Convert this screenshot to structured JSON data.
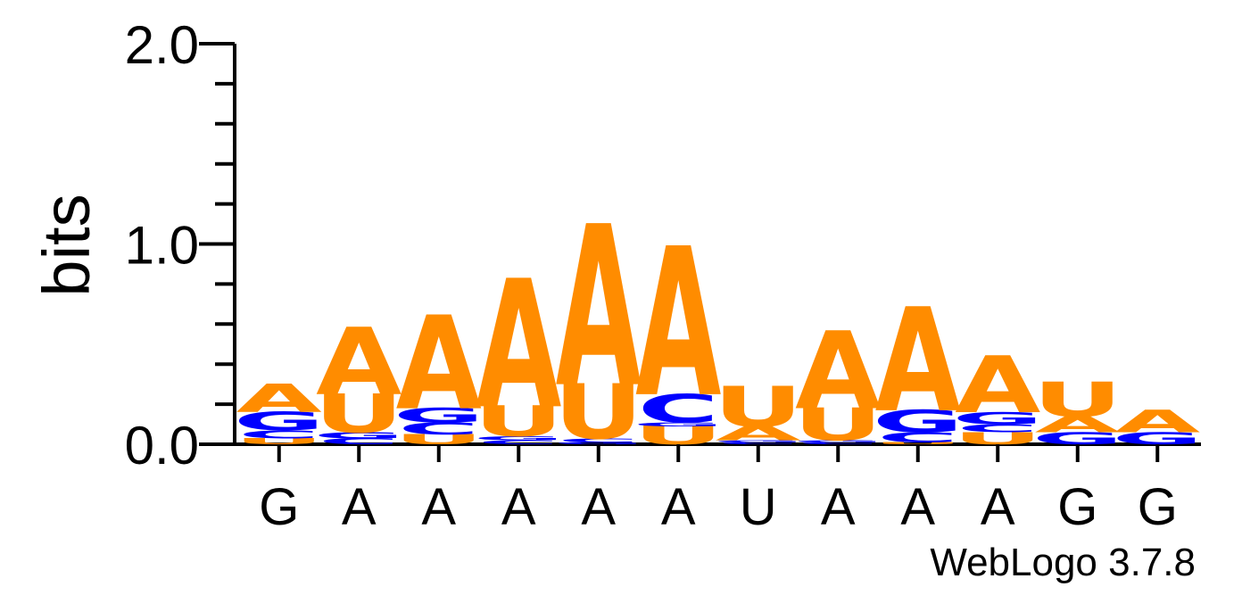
{
  "chart_data": {
    "type": "sequence_logo",
    "ylabel": "bits",
    "ylim": [
      0,
      2.0
    ],
    "yticks": [
      "0.0",
      "1.0",
      "2.0"
    ],
    "colors": {
      "A": "#ff8c00",
      "U": "#ff8c00",
      "C": "#0000ff",
      "G": "#0000ff"
    },
    "positions": [
      {
        "label": "G",
        "stack": [
          {
            "letter": "U",
            "bits": 0.03
          },
          {
            "letter": "C",
            "bits": 0.04
          },
          {
            "letter": "G",
            "bits": 0.09
          },
          {
            "letter": "A",
            "bits": 0.14
          }
        ]
      },
      {
        "label": "A",
        "stack": [
          {
            "letter": "C",
            "bits": 0.03
          },
          {
            "letter": "G",
            "bits": 0.03
          },
          {
            "letter": "U",
            "bits": 0.19
          },
          {
            "letter": "A",
            "bits": 0.33
          }
        ]
      },
      {
        "label": "A",
        "stack": [
          {
            "letter": "U",
            "bits": 0.05
          },
          {
            "letter": "C",
            "bits": 0.06
          },
          {
            "letter": "G",
            "bits": 0.07
          },
          {
            "letter": "A",
            "bits": 0.46
          }
        ]
      },
      {
        "label": "A",
        "stack": [
          {
            "letter": "C",
            "bits": 0.02
          },
          {
            "letter": "G",
            "bits": 0.02
          },
          {
            "letter": "U",
            "bits": 0.15
          },
          {
            "letter": "A",
            "bits": 0.63
          }
        ]
      },
      {
        "label": "A",
        "stack": [
          {
            "letter": "G",
            "bits": 0.01
          },
          {
            "letter": "C",
            "bits": 0.02
          },
          {
            "letter": "U",
            "bits": 0.27
          },
          {
            "letter": "A",
            "bits": 0.79
          }
        ]
      },
      {
        "label": "A",
        "stack": [
          {
            "letter": "U",
            "bits": 0.09
          },
          {
            "letter": "G",
            "bits": 0.02
          },
          {
            "letter": "C",
            "bits": 0.14
          },
          {
            "letter": "A",
            "bits": 0.73
          }
        ]
      },
      {
        "label": "U",
        "stack": [
          {
            "letter": "C",
            "bits": 0.01
          },
          {
            "letter": "G",
            "bits": 0.01
          },
          {
            "letter": "A",
            "bits": 0.07
          },
          {
            "letter": "U",
            "bits": 0.2
          }
        ]
      },
      {
        "label": "A",
        "stack": [
          {
            "letter": "C",
            "bits": 0.01
          },
          {
            "letter": "G",
            "bits": 0.01
          },
          {
            "letter": "U",
            "bits": 0.16
          },
          {
            "letter": "A",
            "bits": 0.38
          }
        ]
      },
      {
        "label": "A",
        "stack": [
          {
            "letter": "U",
            "bits": 0.01
          },
          {
            "letter": "C",
            "bits": 0.05
          },
          {
            "letter": "G",
            "bits": 0.11
          },
          {
            "letter": "A",
            "bits": 0.51
          }
        ]
      },
      {
        "label": "A",
        "stack": [
          {
            "letter": "U",
            "bits": 0.06
          },
          {
            "letter": "C",
            "bits": 0.04
          },
          {
            "letter": "G",
            "bits": 0.06
          },
          {
            "letter": "A",
            "bits": 0.28
          }
        ]
      },
      {
        "label": "G",
        "stack": [
          {
            "letter": "G",
            "bits": 0.06
          },
          {
            "letter": "A",
            "bits": 0.08
          },
          {
            "letter": "U",
            "bits": 0.17
          }
        ]
      },
      {
        "label": "G",
        "stack": [
          {
            "letter": "G",
            "bits": 0.06
          },
          {
            "letter": "A",
            "bits": 0.11
          }
        ]
      }
    ]
  },
  "credit": "WebLogo 3.7.8"
}
